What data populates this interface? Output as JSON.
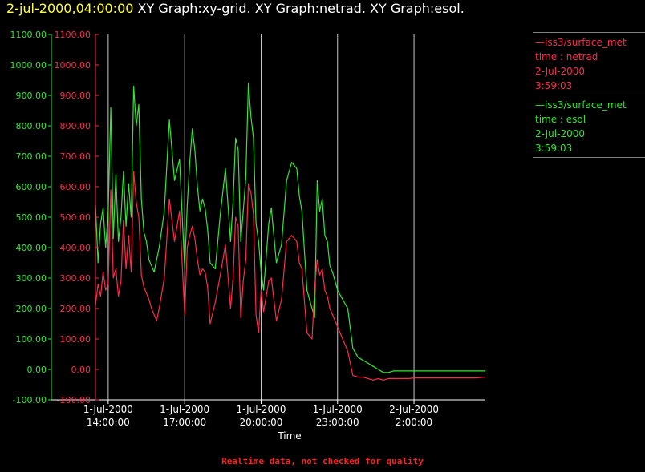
{
  "header": {
    "timestamp": "2-jul-2000,04:00:00",
    "graphs": "XY Graph:xy-grid.  XY Graph:netrad.  XY Graph:esol."
  },
  "legend": [
    {
      "source": "—iss3/surface_met",
      "variable": "time : netrad",
      "date": "2-Jul-2000",
      "time": "3:59:03",
      "color": "#ff2a4a"
    },
    {
      "source": "—iss3/surface_met",
      "variable": "time : esol",
      "date": "2-Jul-2000",
      "time": "3:59:03",
      "color": "#33e633"
    }
  ],
  "footer": "Realtime data, not checked for quality",
  "chart_data": {
    "type": "line",
    "title": "",
    "xlabel": "Time",
    "ylabel": "",
    "ylim": [
      -100,
      1100
    ],
    "xlim_hours": [
      13.5,
      28.8
    ],
    "grid": "vertical lines at x ticks",
    "legend_position": "right",
    "yticks": [
      "-100.00",
      "0.00",
      "100.00",
      "200.00",
      "300.00",
      "400.00",
      "500.00",
      "600.00",
      "700.00",
      "800.00",
      "900.00",
      "1000.00",
      "1100.00"
    ],
    "xticks": [
      {
        "date": "1-Jul-2000",
        "time": "14:00:00",
        "hour": 14
      },
      {
        "date": "1-Jul-2000",
        "time": "17:00:00",
        "hour": 17
      },
      {
        "date": "1-Jul-2000",
        "time": "20:00:00",
        "hour": 20
      },
      {
        "date": "1-Jul-2000",
        "time": "23:00:00",
        "hour": 23
      },
      {
        "date": "2-Jul-2000",
        "time": "2:00:00",
        "hour": 26
      }
    ],
    "series": [
      {
        "name": "time : esol",
        "color": "#33e633",
        "x": [
          13.5,
          13.6,
          13.7,
          13.8,
          13.9,
          14.0,
          14.1,
          14.2,
          14.3,
          14.4,
          14.5,
          14.6,
          14.7,
          14.8,
          14.9,
          15.0,
          15.1,
          15.2,
          15.3,
          15.4,
          15.5,
          15.6,
          15.7,
          15.8,
          15.9,
          16.0,
          16.2,
          16.4,
          16.6,
          16.8,
          17.0,
          17.1,
          17.2,
          17.3,
          17.4,
          17.5,
          17.6,
          17.7,
          17.8,
          17.9,
          18.0,
          18.2,
          18.4,
          18.6,
          18.8,
          18.9,
          19.0,
          19.1,
          19.2,
          19.3,
          19.4,
          19.5,
          19.6,
          19.7,
          19.8,
          19.9,
          20.0,
          20.1,
          20.2,
          20.3,
          20.4,
          20.6,
          20.8,
          21.0,
          21.2,
          21.4,
          21.5,
          21.6,
          21.8,
          22.0,
          22.1,
          22.2,
          22.3,
          22.4,
          22.5,
          22.6,
          22.7,
          22.8,
          23.0,
          23.2,
          23.4,
          23.6,
          23.8,
          24.0,
          24.2,
          24.4,
          24.6,
          24.8,
          25.0,
          25.2,
          25.4,
          25.6,
          25.8,
          26.0,
          26.4,
          26.8,
          27.2,
          27.6,
          28.0,
          28.4,
          28.8
        ],
        "y": [
          540,
          350,
          480,
          530,
          400,
          520,
          860,
          430,
          640,
          420,
          500,
          650,
          470,
          610,
          500,
          930,
          800,
          870,
          560,
          450,
          420,
          360,
          340,
          320,
          360,
          400,
          520,
          820,
          620,
          690,
          330,
          540,
          680,
          790,
          720,
          600,
          520,
          560,
          530,
          460,
          350,
          330,
          510,
          660,
          420,
          550,
          760,
          720,
          420,
          520,
          630,
          940,
          830,
          760,
          480,
          420,
          320,
          260,
          370,
          480,
          530,
          350,
          410,
          620,
          680,
          660,
          570,
          520,
          260,
          200,
          170,
          620,
          520,
          560,
          440,
          420,
          340,
          320,
          260,
          230,
          200,
          70,
          40,
          30,
          20,
          10,
          0,
          -10,
          -10,
          -5,
          -5,
          -5,
          -5,
          -5,
          -5,
          -5,
          -5,
          -5,
          -5,
          -5,
          -5
        ]
      },
      {
        "name": "time : netrad",
        "color": "#ff2a4a",
        "x": [
          13.5,
          13.6,
          13.7,
          13.8,
          13.9,
          14.0,
          14.1,
          14.2,
          14.3,
          14.4,
          14.5,
          14.6,
          14.7,
          14.8,
          14.9,
          15.0,
          15.1,
          15.2,
          15.3,
          15.4,
          15.5,
          15.6,
          15.7,
          15.8,
          15.9,
          16.0,
          16.2,
          16.4,
          16.6,
          16.8,
          17.0,
          17.1,
          17.2,
          17.3,
          17.4,
          17.5,
          17.6,
          17.7,
          17.8,
          17.9,
          18.0,
          18.2,
          18.4,
          18.6,
          18.8,
          18.9,
          19.0,
          19.1,
          19.2,
          19.3,
          19.4,
          19.5,
          19.6,
          19.7,
          19.8,
          19.9,
          20.0,
          20.1,
          20.2,
          20.3,
          20.4,
          20.6,
          20.8,
          21.0,
          21.2,
          21.4,
          21.5,
          21.6,
          21.8,
          22.0,
          22.1,
          22.2,
          22.3,
          22.4,
          22.5,
          22.6,
          22.7,
          22.8,
          23.0,
          23.2,
          23.4,
          23.6,
          23.8,
          24.0,
          24.2,
          24.4,
          24.6,
          24.8,
          25.0,
          25.2,
          25.4,
          25.6,
          25.8,
          26.0,
          26.4,
          26.8,
          27.2,
          27.6,
          28.0,
          28.4,
          28.8
        ],
        "y": [
          210,
          280,
          240,
          320,
          260,
          280,
          590,
          300,
          330,
          240,
          290,
          490,
          330,
          440,
          320,
          650,
          550,
          500,
          310,
          270,
          250,
          230,
          200,
          180,
          160,
          200,
          300,
          560,
          420,
          520,
          180,
          400,
          440,
          470,
          430,
          360,
          310,
          330,
          320,
          270,
          150,
          220,
          310,
          410,
          200,
          300,
          500,
          470,
          170,
          290,
          360,
          610,
          580,
          510,
          180,
          120,
          260,
          190,
          240,
          290,
          300,
          160,
          230,
          420,
          440,
          420,
          350,
          330,
          120,
          100,
          270,
          360,
          310,
          330,
          260,
          240,
          200,
          180,
          140,
          100,
          60,
          -20,
          -25,
          -25,
          -30,
          -35,
          -30,
          -35,
          -30,
          -30,
          -30,
          -30,
          -30,
          -28,
          -28,
          -28,
          -28,
          -28,
          -28,
          -28,
          -25
        ]
      }
    ]
  }
}
